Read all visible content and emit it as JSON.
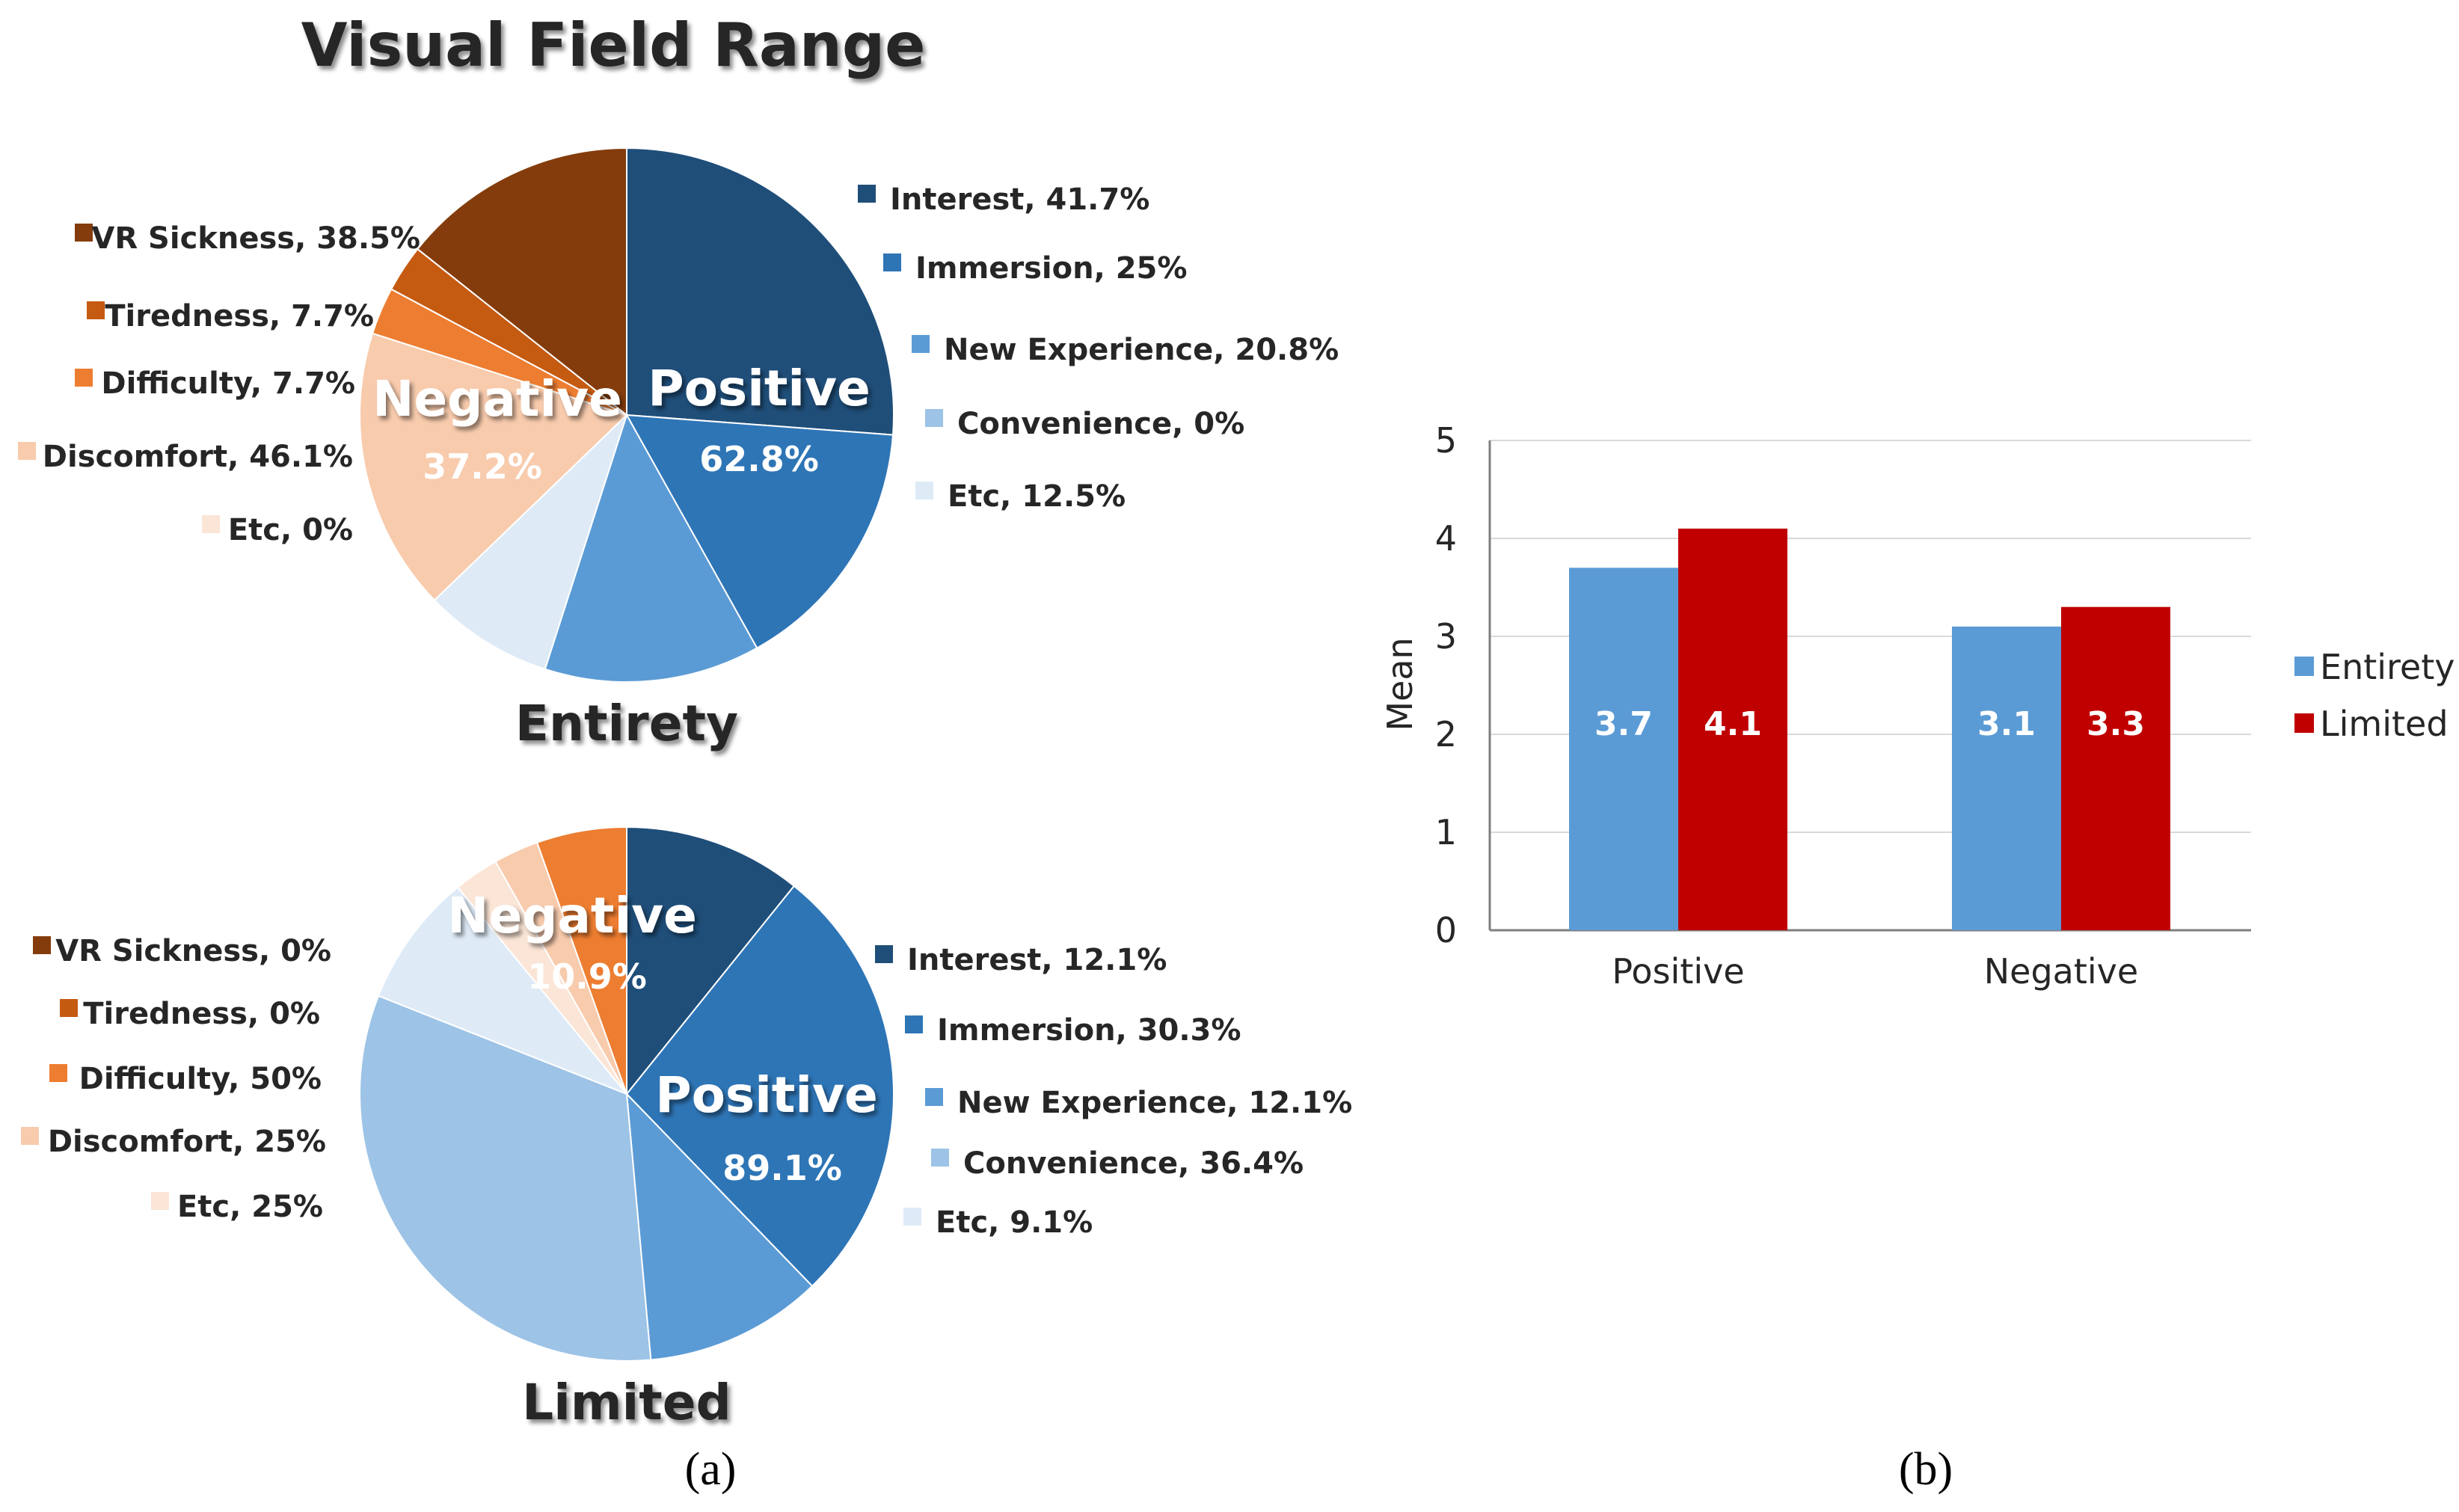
{
  "chart_data": [
    {
      "type": "pie",
      "title": "Visual Field Range",
      "name": "Entirety",
      "groups": [
        {
          "label": "Positive",
          "percent": "62.8%",
          "value": 62.8
        },
        {
          "label": "Negative",
          "percent": "37.2%",
          "value": 37.2
        }
      ],
      "positive_items": [
        {
          "label": "Interest, 41.7%",
          "value": 41.7,
          "color": "#1f4e79"
        },
        {
          "label": "Immersion, 25%",
          "value": 25,
          "color": "#2e75b6"
        },
        {
          "label": "New Experience, 20.8%",
          "value": 20.8,
          "color": "#5b9bd5"
        },
        {
          "label": "Convenience, 0%",
          "value": 0,
          "color": "#9dc3e6"
        },
        {
          "label": "Etc, 12.5%",
          "value": 12.5,
          "color": "#deebf7"
        }
      ],
      "negative_items": [
        {
          "label": "VR Sickness, 38.5%",
          "value": 38.5,
          "color": "#843c0c"
        },
        {
          "label": "Tiredness, 7.7%",
          "value": 7.7,
          "color": "#c55a11"
        },
        {
          "label": "Difficulty, 7.7%",
          "value": 7.7,
          "color": "#ed7d31"
        },
        {
          "label": "Discomfort, 46.1%",
          "value": 46.1,
          "color": "#f8cbad"
        },
        {
          "label": "Etc, 0%",
          "value": 0,
          "color": "#fbe5d6"
        }
      ]
    },
    {
      "type": "pie",
      "name": "Limited",
      "groups": [
        {
          "label": "Positive",
          "percent": "89.1%",
          "value": 89.1
        },
        {
          "label": "Negative",
          "percent": "10.9%",
          "value": 10.9
        }
      ],
      "positive_items": [
        {
          "label": "Interest, 12.1%",
          "value": 12.1,
          "color": "#1f4e79"
        },
        {
          "label": "Immersion, 30.3%",
          "value": 30.3,
          "color": "#2e75b6"
        },
        {
          "label": "New Experience, 12.1%",
          "value": 12.1,
          "color": "#5b9bd5"
        },
        {
          "label": "Convenience, 36.4%",
          "value": 36.4,
          "color": "#9dc3e6"
        },
        {
          "label": "Etc, 9.1%",
          "value": 9.1,
          "color": "#deebf7"
        }
      ],
      "negative_items": [
        {
          "label": "VR Sickness, 0%",
          "value": 0,
          "color": "#843c0c"
        },
        {
          "label": "Tiredness, 0%",
          "value": 0,
          "color": "#c55a11"
        },
        {
          "label": "Difficulty, 50%",
          "value": 50,
          "color": "#ed7d31"
        },
        {
          "label": "Discomfort, 25%",
          "value": 25,
          "color": "#f8cbad"
        },
        {
          "label": "Etc, 25%",
          "value": 25,
          "color": "#fbe5d6"
        }
      ]
    },
    {
      "type": "bar",
      "categories": [
        "Positive",
        "Negative"
      ],
      "series": [
        {
          "name": "Entirety",
          "values": [
            3.7,
            3.1
          ],
          "labels": [
            "3.7",
            "3.1"
          ],
          "color": "#5b9bd5"
        },
        {
          "name": "Limited",
          "values": [
            4.1,
            3.3
          ],
          "labels": [
            "4.1",
            "3.3"
          ],
          "color": "#c00000"
        }
      ],
      "ylabel": "Mean",
      "ylim": [
        0,
        5
      ],
      "yticks": [
        "0",
        "1",
        "2",
        "3",
        "4",
        "5"
      ],
      "grid": true,
      "legend": "right"
    }
  ],
  "captions": {
    "a": "(a)",
    "b": "(b)"
  }
}
